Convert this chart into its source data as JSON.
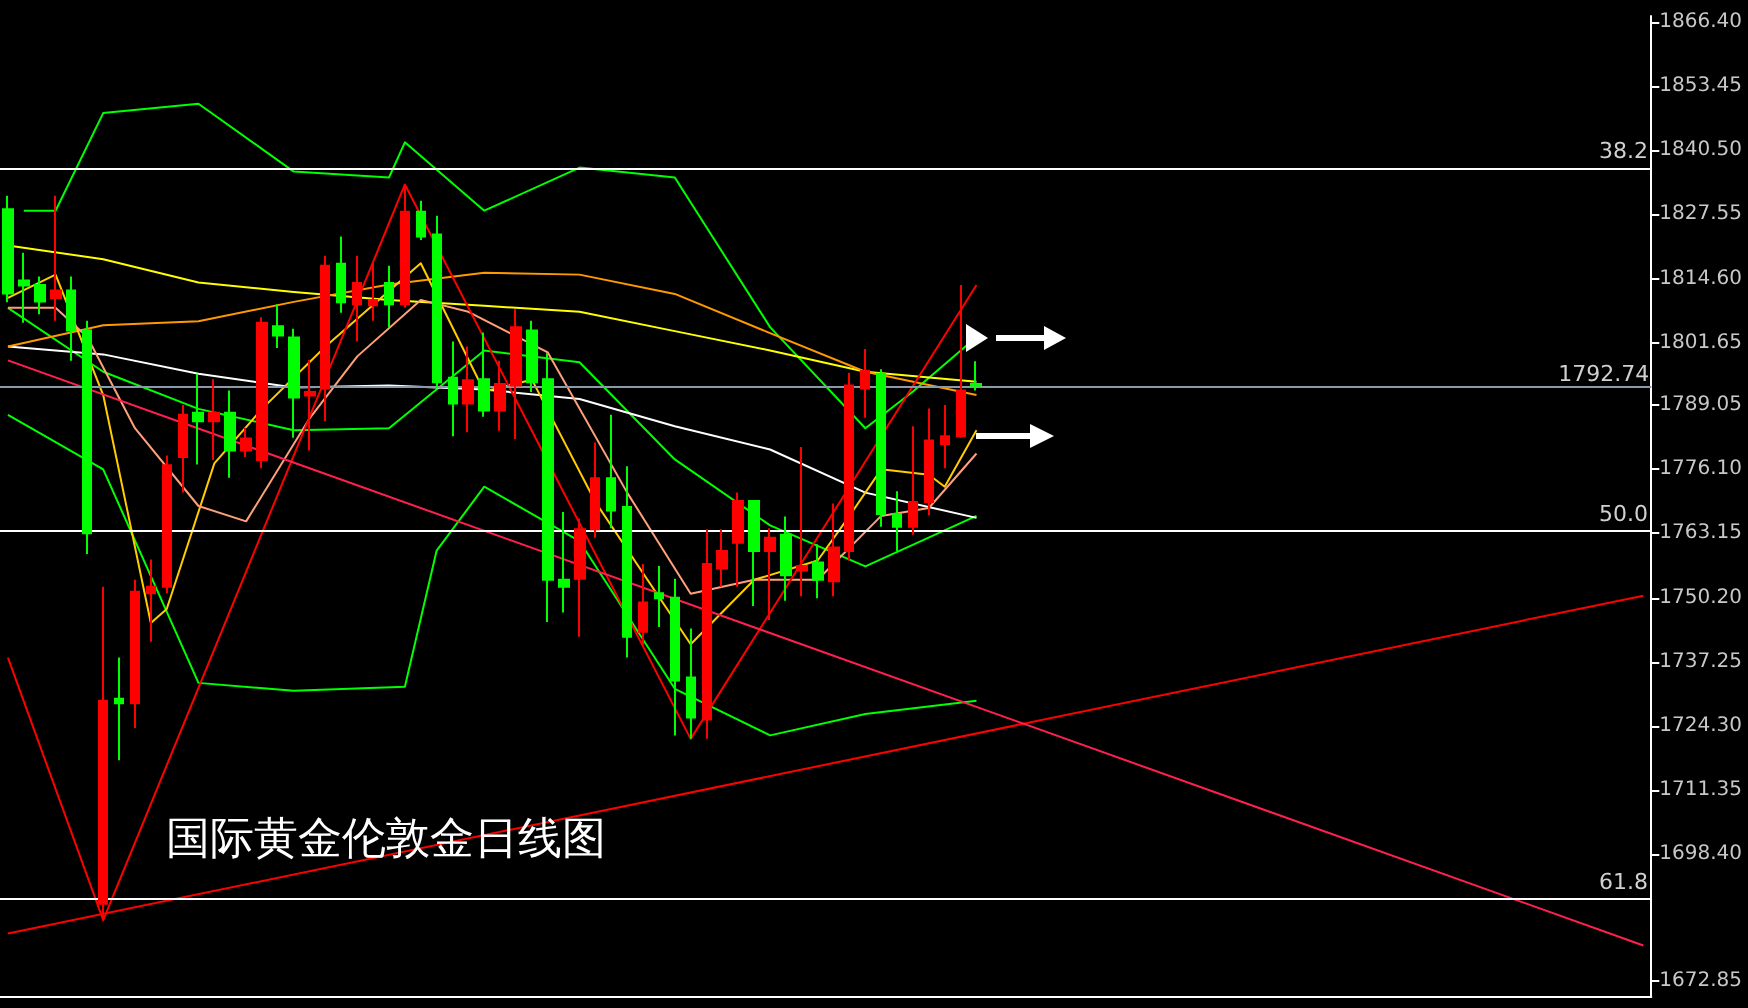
{
  "chart_data": {
    "type": "candlestick",
    "title": "国际黄金伦敦金日线图",
    "categories": [
      null,
      null,
      null,
      null,
      null,
      null,
      null,
      null,
      null,
      null,
      null,
      null,
      null,
      null,
      null,
      null,
      null,
      null,
      null,
      null,
      null,
      null,
      null,
      null,
      null,
      null,
      null,
      null,
      null,
      null,
      null,
      null,
      null,
      null,
      null,
      null,
      null,
      null,
      null,
      null,
      null,
      null,
      null,
      null,
      null,
      null,
      null,
      null,
      null,
      null,
      null,
      null,
      null,
      null,
      null,
      null,
      null,
      null,
      null,
      null,
      null,
      null,
      null,
      null,
      null,
      null,
      null,
      null,
      null,
      null,
      null,
      null,
      null,
      null,
      null,
      null,
      null,
      null,
      null,
      null,
      null,
      null,
      null,
      null,
      null,
      null,
      null,
      null,
      null,
      null,
      null,
      null,
      null,
      null,
      null,
      null,
      null,
      null,
      null,
      null,
      null,
      null,
      null,
      null
    ],
    "ohlc": [
      [
        1828.6,
        1831.3,
        1809.8,
        1811.6
      ],
      [
        1814.2,
        1819.8,
        1805.7,
        1813.2
      ],
      [
        1813.3,
        1815.0,
        1807.4,
        1810.0
      ],
      [
        1810.7,
        1831.3,
        1806.1,
        1812.2
      ],
      [
        1812.2,
        1815.0,
        1798.0,
        1804.1
      ],
      [
        1804.1,
        1806.1,
        1759.0,
        1763.2
      ],
      [
        1688.4,
        1752.4,
        1685.1,
        1729.4
      ],
      [
        1729.8,
        1738.1,
        1717.4,
        1728.9
      ],
      [
        1728.9,
        1753.8,
        1723.9,
        1751.4
      ],
      [
        1751.1,
        1757.9,
        1741.3,
        1752.4
      ],
      [
        1752.4,
        1778.9,
        1751.1,
        1776.9
      ],
      [
        1778.6,
        1789.1,
        1771.4,
        1787.1
      ],
      [
        1787.5,
        1795.4,
        1777.1,
        1785.8
      ],
      [
        1785.8,
        1794.3,
        1778.0,
        1787.5
      ],
      [
        1787.5,
        1792.0,
        1774.4,
        1779.9
      ],
      [
        1779.9,
        1784.5,
        1778.6,
        1782.3
      ],
      [
        1778.0,
        1806.8,
        1776.3,
        1805.7
      ],
      [
        1805.0,
        1809.4,
        1800.6,
        1803.1
      ],
      [
        1802.7,
        1804.5,
        1782.5,
        1790.6
      ],
      [
        1791.0,
        1798.2,
        1779.9,
        1791.7
      ],
      [
        1792.4,
        1819.2,
        1785.8,
        1817.2
      ],
      [
        1817.6,
        1823.1,
        1807.7,
        1809.8
      ],
      [
        1809.4,
        1819.2,
        1801.9,
        1813.7
      ],
      [
        1809.2,
        1817.9,
        1806.1,
        1810.3
      ],
      [
        1813.7,
        1817.2,
        1804.8,
        1809.4
      ],
      [
        1809.4,
        1833.6,
        1808.7,
        1828.1
      ],
      [
        1828.1,
        1830.3,
        1822.4,
        1823.1
      ],
      [
        1823.5,
        1827.3,
        1792.4,
        1793.7
      ],
      [
        1794.6,
        1801.9,
        1782.8,
        1789.4
      ],
      [
        1789.4,
        1800.9,
        1783.6,
        1794.1
      ],
      [
        1794.3,
        1803.7,
        1786.7,
        1788.0
      ],
      [
        1788.0,
        1798.0,
        1783.9,
        1793.3
      ],
      [
        1793.0,
        1808.4,
        1782.2,
        1804.8
      ],
      [
        1804.1,
        1806.1,
        1791.7,
        1793.7
      ],
      [
        1794.3,
        1799.6,
        1745.3,
        1753.8
      ],
      [
        1753.8,
        1767.5,
        1747.2,
        1752.4
      ],
      [
        1754.0,
        1766.2,
        1742.3,
        1764.0
      ],
      [
        1764.0,
        1781.5,
        1762.3,
        1774.3
      ],
      [
        1774.3,
        1787.1,
        1764.2,
        1767.8
      ],
      [
        1768.5,
        1776.7,
        1738.1,
        1742.3
      ],
      [
        1743.3,
        1757.0,
        1740.7,
        1749.2
      ],
      [
        1751.1,
        1756.6,
        1744.3,
        1750.1
      ],
      [
        1750.2,
        1754.0,
        1722.4,
        1733.5
      ],
      [
        1734.1,
        1744.0,
        1721.7,
        1726.0
      ],
      [
        1725.6,
        1764.0,
        1721.7,
        1757.0
      ],
      [
        1756.1,
        1764.0,
        1752.4,
        1759.6
      ],
      [
        1761.3,
        1771.4,
        1752.4,
        1769.7
      ],
      [
        1769.7,
        1769.7,
        1748.5,
        1759.6
      ],
      [
        1759.6,
        1764.2,
        1745.7,
        1762.3
      ],
      [
        1762.9,
        1766.6,
        1749.6,
        1754.7
      ],
      [
        1755.7,
        1780.6,
        1750.5,
        1756.6
      ],
      [
        1757.3,
        1761.0,
        1750.1,
        1753.8
      ],
      [
        1753.5,
        1769.2,
        1750.5,
        1760.3
      ],
      [
        1759.6,
        1795.6,
        1757.7,
        1793.0
      ],
      [
        1792.4,
        1800.4,
        1786.5,
        1796.0
      ],
      [
        1795.4,
        1796.3,
        1764.5,
        1767.1
      ],
      [
        1767.1,
        1771.7,
        1759.6,
        1764.5
      ],
      [
        1764.5,
        1784.8,
        1762.9,
        1769.5
      ],
      [
        1769.5,
        1788.4,
        1766.8,
        1781.9
      ],
      [
        1781.2,
        1789.1,
        1776.3,
        1782.8
      ],
      [
        1782.8,
        1813.3,
        1782.5,
        1792.0
      ],
      [
        1793.3,
        1797.9,
        1792.0,
        1793.0
      ],
      null,
      null,
      null,
      null,
      null,
      null,
      null,
      null,
      null,
      null,
      null,
      null,
      null,
      null,
      null,
      null,
      null,
      null,
      null,
      null,
      null,
      null,
      null,
      null,
      null,
      null,
      null,
      null,
      null,
      null,
      null,
      null,
      null,
      null,
      null,
      null,
      null,
      null,
      null,
      null,
      null,
      null
    ],
    "colors": [
      "#00ff00",
      "#00ff00",
      "#00ff00",
      "#ff0000",
      "#00ff00",
      "#00ff00",
      "#ff0000",
      "#00ff00",
      "#ff0000",
      "#ff0000",
      "#ff0000",
      "#ff0000",
      "#00ff00",
      "#ff0000",
      "#00ff00",
      "#ff0000",
      "#ff0000",
      "#00ff00",
      "#00ff00",
      "#ff0000",
      "#ff0000",
      "#00ff00",
      "#ff0000",
      "#ff0000",
      "#00ff00",
      "#ff0000",
      "#00ff00",
      "#00ff00",
      "#00ff00",
      "#ff0000",
      "#00ff00",
      "#ff0000",
      "#ff0000",
      "#00ff00",
      "#00ff00",
      "#00ff00",
      "#ff0000",
      "#ff0000",
      "#00ff00",
      "#00ff00",
      "#ff0000",
      "#00ff00",
      "#00ff00",
      "#00ff00",
      "#ff0000",
      "#ff0000",
      "#ff0000",
      "#00ff00",
      "#ff0000",
      "#00ff00",
      "#ff0000",
      "#00ff00",
      "#ff0000",
      "#ff0000",
      "#ff0000",
      "#00ff00",
      "#00ff00",
      "#ff0000",
      "#ff0000",
      "#ff0000",
      "#ff0000",
      "#00ff00",
      null,
      null,
      null,
      null,
      null,
      null,
      null,
      null,
      null,
      null,
      null,
      null,
      null,
      null,
      null,
      null,
      null,
      null,
      null,
      null,
      null,
      null,
      null,
      null,
      null,
      null,
      null,
      null,
      null,
      null,
      null,
      null,
      null,
      null,
      null,
      null,
      null,
      null,
      null,
      null,
      null,
      null
    ],
    "series": [
      {
        "type": "line",
        "color": "#00ff00",
        "values": [
          null,
          1828.3,
          null,
          1828.3,
          null,
          null,
          1848.0,
          null,
          null,
          null,
          null,
          null,
          1849.9,
          null,
          null,
          null,
          null,
          null,
          1836.2,
          null,
          null,
          null,
          null,
          null,
          1835.0,
          1842.1,
          null,
          null,
          null,
          null,
          1828.3,
          null,
          null,
          null,
          null,
          null,
          1837.0,
          null,
          null,
          null,
          null,
          null,
          1835.0,
          null,
          null,
          null,
          null,
          null,
          1804.8,
          null,
          null,
          null,
          null,
          null,
          1784.4,
          null,
          null,
          1791.8,
          null,
          null,
          null,
          1802.8,
          null,
          null,
          null,
          null,
          null,
          null,
          null,
          null,
          null,
          null,
          null,
          null,
          null,
          null,
          null,
          null,
          null,
          null,
          null,
          null,
          null,
          null,
          null,
          null,
          null,
          null,
          null,
          null,
          null,
          null,
          null,
          null,
          null,
          null,
          null,
          null,
          null,
          null,
          null,
          null,
          null,
          null
        ]
      },
      {
        "type": "line",
        "color": "#00ff00",
        "values": [
          1808.7,
          null,
          null,
          null,
          null,
          null,
          1795.8,
          null,
          null,
          null,
          null,
          null,
          1788.3,
          null,
          null,
          null,
          null,
          null,
          1784.0,
          null,
          null,
          null,
          null,
          null,
          1784.4,
          null,
          null,
          null,
          null,
          null,
          1800.1,
          null,
          null,
          null,
          null,
          null,
          1797.7,
          null,
          null,
          null,
          null,
          null,
          1778.1,
          null,
          null,
          null,
          null,
          null,
          1764.8,
          null,
          null,
          null,
          null,
          null,
          1756.5,
          null,
          null,
          null,
          null,
          null,
          null,
          1766.7,
          null,
          null,
          null,
          null,
          null,
          null,
          null,
          null,
          null,
          null,
          null,
          null,
          null,
          null,
          null,
          null,
          null,
          null,
          null,
          null,
          null,
          null,
          null,
          null,
          null,
          null,
          null,
          null,
          null,
          null,
          null,
          null,
          null,
          null,
          null,
          null,
          null,
          null,
          null,
          null,
          null,
          null
        ]
      },
      {
        "type": "line",
        "color": "#00ff00",
        "values": [
          1787.1,
          null,
          null,
          null,
          null,
          null,
          1776.1,
          null,
          null,
          null,
          null,
          null,
          1733.0,
          null,
          null,
          null,
          null,
          null,
          1731.4,
          null,
          null,
          null,
          null,
          null,
          null,
          1732.2,
          null,
          1759.7,
          null,
          null,
          1772.6,
          null,
          null,
          null,
          null,
          null,
          1761.6,
          null,
          null,
          null,
          null,
          null,
          1731.8,
          null,
          null,
          null,
          null,
          null,
          1722.4,
          null,
          null,
          null,
          null,
          null,
          1726.7,
          null,
          null,
          null,
          null,
          null,
          null,
          1729.4,
          null,
          null,
          null,
          null,
          null,
          null,
          null,
          null,
          null,
          null,
          null,
          null,
          null,
          null,
          null,
          null,
          null,
          null,
          null,
          null,
          null,
          null,
          null,
          null,
          null,
          null,
          null,
          null,
          null,
          null,
          null,
          null,
          null,
          null,
          null,
          null,
          null,
          null,
          null,
          null,
          null,
          null
        ]
      },
      {
        "type": "line",
        "color": "#ffffff",
        "values": [
          1800.9,
          null,
          null,
          null,
          null,
          null,
          1799.3,
          null,
          null,
          null,
          null,
          null,
          1795.4,
          null,
          null,
          null,
          null,
          null,
          1792.6,
          null,
          null,
          null,
          null,
          null,
          1793.0,
          null,
          null,
          null,
          null,
          null,
          1792.2,
          null,
          null,
          null,
          null,
          null,
          1790.3,
          null,
          null,
          null,
          null,
          null,
          1784.8,
          null,
          null,
          null,
          null,
          null,
          1780.1,
          null,
          null,
          null,
          null,
          null,
          1771.4,
          null,
          null,
          null,
          null,
          null,
          null,
          1766.3,
          null,
          null,
          null,
          null,
          null,
          null,
          null,
          null,
          null,
          null,
          null,
          null,
          null,
          null,
          null,
          null,
          null,
          null,
          null,
          null,
          null,
          null,
          null,
          null,
          null,
          null,
          null,
          null,
          null,
          null,
          null,
          null,
          null,
          null,
          null,
          null,
          null,
          null,
          null,
          null,
          null,
          null
        ]
      },
      {
        "type": "line",
        "color": "#ffff00",
        "values": [
          1821.3,
          null,
          null,
          null,
          null,
          null,
          1818.5,
          null,
          null,
          null,
          null,
          null,
          1813.8,
          null,
          null,
          null,
          null,
          null,
          1811.9,
          null,
          null,
          null,
          null,
          null,
          1810.3,
          null,
          null,
          null,
          null,
          null,
          1809.1,
          null,
          null,
          null,
          null,
          null,
          1807.9,
          null,
          null,
          null,
          null,
          null,
          1804.0,
          null,
          null,
          null,
          null,
          null,
          1800.1,
          null,
          null,
          null,
          null,
          null,
          1795.8,
          null,
          null,
          null,
          null,
          null,
          null,
          1793.8,
          null,
          null,
          null,
          null,
          null,
          null,
          null,
          null,
          null,
          null,
          null,
          null,
          null,
          null,
          null,
          null,
          null,
          null,
          null,
          null,
          null,
          null,
          null,
          null,
          null,
          null,
          null,
          null,
          null,
          null,
          null,
          null,
          null,
          null,
          null,
          null,
          null,
          null,
          null,
          null,
          null,
          null
        ]
      },
      {
        "type": "line",
        "color": "#ff9900",
        "values": [
          1800.9,
          null,
          null,
          null,
          null,
          null,
          1805.2,
          null,
          null,
          null,
          null,
          null,
          1806.0,
          null,
          null,
          null,
          null,
          null,
          1809.9,
          null,
          null,
          null,
          null,
          null,
          1813.4,
          null,
          null,
          null,
          null,
          null,
          1815.8,
          null,
          null,
          null,
          null,
          null,
          1815.4,
          null,
          null,
          null,
          null,
          null,
          1811.5,
          null,
          null,
          null,
          null,
          null,
          1803.6,
          null,
          null,
          null,
          null,
          null,
          1795.8,
          null,
          null,
          null,
          null,
          null,
          null,
          1791.1,
          null,
          null,
          null,
          null,
          null,
          null,
          null,
          null,
          null,
          null,
          null,
          null,
          null,
          null,
          null,
          null,
          null,
          null,
          null,
          null,
          null,
          null,
          null,
          null,
          null,
          null,
          null,
          null,
          null,
          null,
          null,
          null,
          null,
          null,
          null,
          null,
          null,
          null,
          null,
          null,
          null,
          null
        ]
      },
      {
        "type": "line",
        "color": "#ffcc00",
        "values": [
          1810.7,
          null,
          null,
          1815.4,
          null,
          null,
          1791.1,
          null,
          null,
          1745.1,
          1747.9,
          null,
          null,
          1777.3,
          null,
          null,
          1788.3,
          null,
          null,
          null,
          1800.9,
          null,
          null,
          null,
          null,
          null,
          1817.7,
          null,
          null,
          null,
          1791.8,
          null,
          null,
          1794.2,
          null,
          null,
          null,
          1769.5,
          null,
          null,
          null,
          null,
          null,
          1740.8,
          null,
          null,
          null,
          1753.8,
          null,
          null,
          null,
          1757.7,
          null,
          1766.7,
          null,
          1776.1,
          null,
          null,
          1775.0,
          1772.6,
          null,
          1784.0,
          null,
          null,
          null,
          null,
          null,
          null,
          null,
          null,
          null,
          null,
          null,
          null,
          null,
          null,
          null,
          null,
          null,
          null,
          null,
          null,
          null,
          null,
          null,
          null,
          null,
          null,
          null,
          null,
          null,
          null,
          null,
          null,
          null,
          null,
          null,
          null,
          null,
          null,
          null,
          null,
          null,
          null
        ]
      },
      {
        "type": "line",
        "color": "#ffa07a",
        "values": [
          1808.7,
          null,
          null,
          1808.7,
          null,
          1802.8,
          null,
          null,
          1784.4,
          null,
          null,
          null,
          1768.7,
          null,
          null,
          1765.6,
          null,
          null,
          null,
          1786.4,
          null,
          null,
          1798.9,
          null,
          null,
          null,
          1810.3,
          null,
          null,
          1807.9,
          null,
          null,
          null,
          null,
          1799.7,
          null,
          null,
          null,
          null,
          1771.4,
          null,
          null,
          null,
          1751.0,
          null,
          null,
          null,
          1753.8,
          null,
          null,
          null,
          1753.8,
          null,
          null,
          null,
          1766.7,
          null,
          null,
          1768.3,
          null,
          null,
          1779.3,
          null,
          null,
          null,
          null,
          null,
          null,
          null,
          null,
          null,
          null,
          null,
          null,
          null,
          null,
          null,
          null,
          null,
          null,
          null,
          null,
          null,
          null,
          null,
          null,
          null,
          null,
          null,
          null,
          null,
          null,
          null,
          null,
          null,
          null,
          null,
          null,
          null,
          null,
          null,
          null,
          null,
          null
        ]
      },
      {
        "type": "line",
        "color": "#ff0000",
        "values": [
          1738.1,
          null,
          null,
          null,
          null,
          null,
          1685.1,
          null,
          null,
          null,
          null,
          null,
          null,
          null,
          null,
          null,
          null,
          null,
          null,
          null,
          null,
          null,
          null,
          null,
          null,
          1833.6,
          null,
          null,
          null,
          null,
          null,
          null,
          null,
          null,
          null,
          null,
          null,
          null,
          null,
          null,
          null,
          null,
          null,
          1721.7,
          null,
          null,
          null,
          null,
          null,
          null,
          null,
          null,
          null,
          null,
          null,
          null,
          null,
          null,
          null,
          null,
          null,
          1813.3,
          null,
          null,
          null,
          null,
          null,
          null,
          null,
          null,
          null,
          null,
          null,
          null,
          null,
          null,
          null,
          null,
          null,
          null,
          null,
          null,
          null,
          null,
          null,
          null,
          null,
          null,
          null,
          null,
          null,
          null,
          null,
          null,
          null,
          null,
          null,
          null,
          null,
          null,
          null,
          null,
          null,
          null
        ]
      },
      {
        "type": "line",
        "color": "#ff0000",
        "values": [
          1682.4,
          null,
          null,
          null,
          null,
          null,
          null,
          null,
          null,
          null,
          null,
          null,
          null,
          null,
          null,
          null,
          null,
          null,
          null,
          null,
          null,
          null,
          null,
          null,
          null,
          null,
          null,
          null,
          null,
          null,
          null,
          null,
          null,
          null,
          null,
          null,
          null,
          null,
          null,
          null,
          null,
          null,
          null,
          null,
          null,
          null,
          null,
          null,
          null,
          null,
          null,
          null,
          null,
          null,
          null,
          null,
          null,
          null,
          null,
          null,
          null,
          null,
          null,
          null,
          null,
          null,
          null,
          null,
          null,
          null,
          null,
          null,
          null,
          null,
          null,
          null,
          null,
          null,
          null,
          null,
          null,
          null,
          null,
          null,
          null,
          null,
          null,
          null,
          null,
          null,
          null,
          null,
          null,
          null,
          null,
          null,
          null,
          null,
          null,
          null,
          null,
          null,
          null,
          1750.6
        ]
      },
      {
        "type": "line",
        "color": "#ff2050",
        "values": [
          1798.1,
          null,
          null,
          null,
          null,
          null,
          null,
          null,
          null,
          null,
          null,
          null,
          null,
          null,
          null,
          null,
          null,
          null,
          null,
          null,
          null,
          null,
          null,
          null,
          null,
          null,
          null,
          null,
          null,
          null,
          null,
          null,
          null,
          null,
          null,
          null,
          null,
          null,
          null,
          null,
          null,
          null,
          null,
          null,
          null,
          null,
          null,
          null,
          null,
          null,
          null,
          null,
          null,
          null,
          null,
          null,
          null,
          null,
          null,
          null,
          null,
          null,
          null,
          null,
          null,
          null,
          null,
          null,
          null,
          null,
          null,
          null,
          null,
          null,
          null,
          null,
          null,
          null,
          null,
          null,
          null,
          null,
          null,
          null,
          null,
          null,
          null,
          null,
          null,
          null,
          null,
          null,
          null,
          null,
          null,
          null,
          null,
          null,
          null,
          null,
          null,
          null,
          null,
          1680.0
        ]
      }
    ],
    "ylim": [
      1669.8,
      1867.6
    ],
    "yticks": [
      {
        "value": 1672.85,
        "label": "1672.85"
      },
      {
        "value": 1698.4,
        "label": "1698.40"
      },
      {
        "value": 1711.35,
        "label": "1711.35"
      },
      {
        "value": 1724.3,
        "label": "1724.30"
      },
      {
        "value": 1737.25,
        "label": "1737.25"
      },
      {
        "value": 1750.2,
        "label": "1750.20"
      },
      {
        "value": 1763.15,
        "label": "1763.15"
      },
      {
        "value": 1776.1,
        "label": "1776.10"
      },
      {
        "value": 1789.05,
        "label": "1789.05"
      },
      {
        "value": 1801.65,
        "label": "1801.65"
      },
      {
        "value": 1814.6,
        "label": "1814.60"
      },
      {
        "value": 1827.55,
        "label": "1827.55"
      },
      {
        "value": 1840.5,
        "label": "1840.50"
      },
      {
        "value": 1853.45,
        "label": "1853.45"
      },
      {
        "value": 1866.4,
        "label": "1866.40"
      }
    ],
    "ref_lines": [
      {
        "axis": "y",
        "value": 1837.0,
        "color": "#ffffff"
      },
      {
        "axis": "y",
        "value": 1763.6,
        "color": "#ffffff"
      },
      {
        "axis": "y",
        "value": 1689.4,
        "color": "#ffffff"
      },
      {
        "axis": "y",
        "value": 1792.74,
        "label": "1792.74",
        "color": "#8a9aaa"
      }
    ],
    "annotations": [
      {
        "text": "38.2",
        "y": 1837.0
      },
      {
        "text": "50.0",
        "y": 1763.6
      },
      {
        "text": "61.8",
        "y": 1689.4
      }
    ],
    "grid": false,
    "tick_labels": "y"
  }
}
